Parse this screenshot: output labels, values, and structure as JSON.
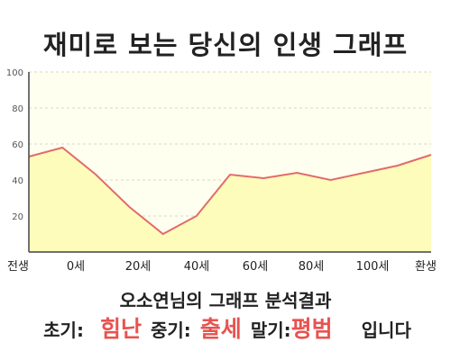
{
  "title": "재미로 보는 당신의 인생 그래프",
  "result": {
    "heading": "오소연님의 그래프 분석결과",
    "early_label": "초기:",
    "early_value": "힘난",
    "middle_label": "중기:",
    "middle_value": "출세",
    "late_label": "말기:",
    "late_value": "평범",
    "suffix": "입니다",
    "value_color": "#e8534f"
  },
  "chart_data": {
    "type": "area",
    "x": [
      -10,
      0,
      10,
      20,
      30,
      40,
      50,
      60,
      70,
      80,
      90,
      100,
      110
    ],
    "values": [
      53,
      58,
      43,
      25,
      10,
      20,
      43,
      41,
      44,
      40,
      44,
      48,
      54
    ],
    "xticks": [
      "전생",
      "0세",
      "20세",
      "40세",
      "60세",
      "80세",
      "100세",
      "환생"
    ],
    "yticks": [
      "20",
      "40",
      "60",
      "80",
      "100"
    ],
    "ylim": [
      0,
      100
    ],
    "grid": "horizontal dashed",
    "fill_color": "#fefcba",
    "line_color": "#e26b6b",
    "plot_background": "#fffff0"
  }
}
